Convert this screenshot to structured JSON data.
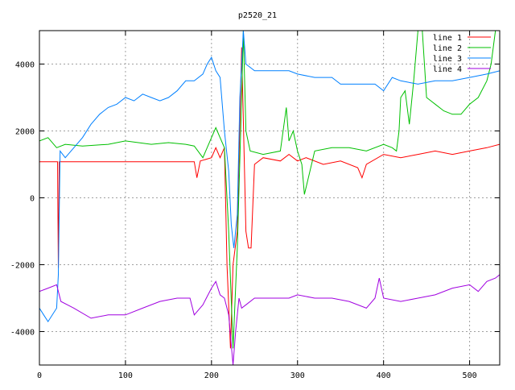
{
  "chart_data": {
    "type": "line",
    "title": "p2520_21",
    "xlabel": "",
    "ylabel": "",
    "xlim": [
      0,
      535
    ],
    "ylim": [
      -5000,
      5000
    ],
    "xticks": [
      0,
      100,
      200,
      300,
      400,
      500
    ],
    "yticks": [
      -4000,
      -2000,
      0,
      2000,
      4000
    ],
    "grid": true,
    "legend_position": "top-right",
    "series": [
      {
        "name": "line 1",
        "color": "#ff0000",
        "x": [
          0,
          21,
          22,
          23,
          180,
          183,
          187,
          200,
          205,
          210,
          215,
          218,
          222,
          225,
          230,
          235,
          240,
          243,
          246,
          250,
          260,
          280,
          290,
          300,
          310,
          330,
          350,
          370,
          375,
          380,
          400,
          420,
          440,
          460,
          480,
          500,
          520,
          535
        ],
        "y": [
          1080,
          1080,
          -2100,
          1080,
          1080,
          600,
          1100,
          1200,
          1500,
          1200,
          1500,
          -2000,
          -4500,
          -2000,
          -1000,
          4500,
          -1000,
          -1500,
          -1500,
          1000,
          1200,
          1100,
          1300,
          1100,
          1200,
          1000,
          1100,
          900,
          600,
          1000,
          1300,
          1200,
          1300,
          1400,
          1300,
          1400,
          1500,
          1600
        ]
      },
      {
        "name": "line 2",
        "color": "#00c000",
        "x": [
          0,
          10,
          20,
          30,
          50,
          80,
          100,
          130,
          150,
          170,
          180,
          190,
          200,
          205,
          210,
          215,
          220,
          225,
          230,
          235,
          237,
          240,
          245,
          260,
          280,
          287,
          290,
          295,
          300,
          305,
          308,
          320,
          340,
          360,
          380,
          400,
          410,
          415,
          418,
          420,
          425,
          430,
          435,
          440,
          445,
          450,
          460,
          470,
          480,
          490,
          500,
          510,
          520,
          525,
          530
        ],
        "y": [
          1700,
          1800,
          1500,
          1600,
          1550,
          1600,
          1700,
          1600,
          1650,
          1600,
          1550,
          1200,
          1800,
          2100,
          1800,
          1500,
          -1000,
          -4500,
          -1500,
          3000,
          5000,
          2000,
          1400,
          1300,
          1400,
          2700,
          1700,
          2000,
          1400,
          1000,
          100,
          1400,
          1500,
          1500,
          1400,
          1600,
          1500,
          1400,
          2000,
          3000,
          3200,
          2200,
          3500,
          5000,
          5000,
          3000,
          2800,
          2600,
          2500,
          2500,
          2800,
          3000,
          3500,
          4000,
          5000
        ]
      },
      {
        "name": "line 3",
        "color": "#0080ff",
        "x": [
          0,
          5,
          10,
          20,
          22,
          24,
          30,
          40,
          50,
          60,
          70,
          80,
          90,
          100,
          110,
          120,
          130,
          140,
          150,
          160,
          170,
          180,
          190,
          195,
          200,
          205,
          210,
          215,
          220,
          223,
          226,
          230,
          233,
          237,
          240,
          250,
          270,
          290,
          300,
          320,
          340,
          350,
          370,
          390,
          400,
          410,
          420,
          440,
          460,
          480,
          500,
          520,
          535
        ],
        "y": [
          -3300,
          -3500,
          -3700,
          -3300,
          -2300,
          1400,
          1200,
          1500,
          1800,
          2200,
          2500,
          2700,
          2800,
          3000,
          2900,
          3100,
          3000,
          2900,
          3000,
          3200,
          3500,
          3500,
          3700,
          4000,
          4200,
          3800,
          3600,
          2000,
          800,
          -800,
          -1500,
          -500,
          3000,
          5000,
          4000,
          3800,
          3800,
          3800,
          3700,
          3600,
          3600,
          3400,
          3400,
          3400,
          3200,
          3600,
          3500,
          3400,
          3500,
          3500,
          3600,
          3700,
          3800
        ]
      },
      {
        "name": "line 4",
        "color": "#a000e0",
        "x": [
          0,
          10,
          20,
          25,
          40,
          60,
          80,
          100,
          120,
          140,
          160,
          175,
          180,
          190,
          200,
          205,
          210,
          215,
          220,
          225,
          228,
          232,
          235,
          240,
          250,
          270,
          290,
          300,
          320,
          340,
          360,
          380,
          390,
          395,
          400,
          420,
          440,
          460,
          480,
          500,
          510,
          520,
          530,
          535
        ],
        "y": [
          -2800,
          -2700,
          -2600,
          -3100,
          -3300,
          -3600,
          -3500,
          -3500,
          -3300,
          -3100,
          -3000,
          -3000,
          -3500,
          -3200,
          -2700,
          -2500,
          -2900,
          -3000,
          -3500,
          -5000,
          -4000,
          -3000,
          -3300,
          -3200,
          -3000,
          -3000,
          -3000,
          -2900,
          -3000,
          -3000,
          -3100,
          -3300,
          -3000,
          -2400,
          -3000,
          -3100,
          -3000,
          -2900,
          -2700,
          -2600,
          -2800,
          -2500,
          -2400,
          -2300
        ]
      }
    ]
  }
}
